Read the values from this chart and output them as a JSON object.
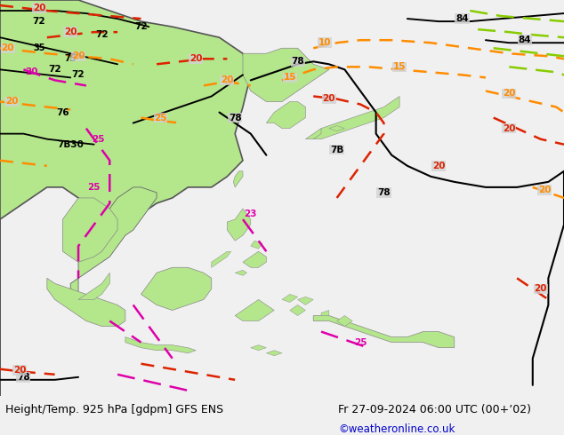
{
  "title_left": "Height/Temp. 925 hPa [gdpm] GFS ENS",
  "title_right": "Fr 27-09-2024 06:00 UTC (00+ʼ02)",
  "copyright": "©weatheronline.co.uk",
  "sea_color": "#d2d2d2",
  "land_color": "#b4e68c",
  "land_edge": "#888888",
  "black": "#000000",
  "orange": "#ff8c00",
  "red": "#dd2200",
  "magenta": "#dd00aa",
  "green_lime": "#88cc00",
  "white_bar": "#f0f0f0"
}
